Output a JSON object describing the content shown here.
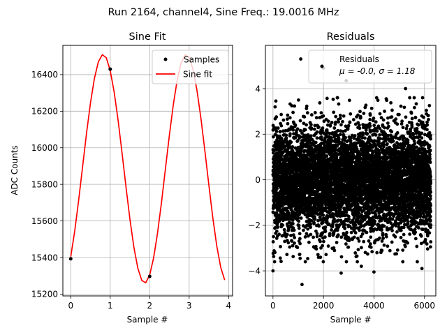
{
  "figure": {
    "suptitle": "Run 2164, channel4, Sine Freq.: 19.0016 MHz"
  },
  "chart_data": [
    {
      "type": "line",
      "title": "Sine Fit",
      "xlabel": "Sample #",
      "ylabel": "ADC Counts",
      "xlim": [
        -0.2,
        4.1
      ],
      "ylim": [
        15190,
        16560
      ],
      "xticks": [
        0,
        1,
        2,
        3,
        4
      ],
      "yticks": [
        15200,
        15400,
        15600,
        15800,
        16000,
        16200,
        16400
      ],
      "grid": true,
      "legend_position": "upper right",
      "series": [
        {
          "name": "Samples",
          "kind": "scatter",
          "color": "#000000",
          "x": [
            0,
            1,
            2
          ],
          "y": [
            15393,
            16430,
            15297
          ]
        },
        {
          "name": "Sine fit",
          "kind": "line",
          "color": "#ff0000",
          "model": {
            "offset": 15885,
            "amplitude": 625,
            "period": 2.105,
            "peak_at": 0.82
          },
          "x_range": [
            0,
            3.9
          ],
          "step": 0.1
        }
      ]
    },
    {
      "type": "scatter",
      "title": "Residuals",
      "xlabel": "Sample #",
      "ylabel": "",
      "xlim": [
        -300,
        6450
      ],
      "ylim": [
        -5.1,
        5.9
      ],
      "xticks": [
        0,
        2000,
        4000,
        6000
      ],
      "yticks": [
        -4,
        -2,
        0,
        2,
        4
      ],
      "grid": true,
      "legend_position": "upper right",
      "legend_title": "Residuals",
      "legend_stats": "μ = -0.0, σ = 1.18",
      "series": [
        {
          "name": "Residuals",
          "color": "#000000",
          "n_points": 6250,
          "mean": -0.0,
          "sigma": 1.18,
          "x_range": [
            0,
            6250
          ],
          "outliers": [
            {
              "x": 1100,
              "y": 5.3
            },
            {
              "x": 2000,
              "y": 4.9
            },
            {
              "x": 2900,
              "y": 4.35
            },
            {
              "x": 5250,
              "y": 4.0
            },
            {
              "x": 1150,
              "y": -4.6
            },
            {
              "x": 0,
              "y": -4.0
            },
            {
              "x": 2700,
              "y": -4.1
            },
            {
              "x": 4000,
              "y": -4.05
            },
            {
              "x": 5900,
              "y": -3.9
            },
            {
              "x": 3500,
              "y": -3.8
            }
          ]
        }
      ]
    }
  ]
}
